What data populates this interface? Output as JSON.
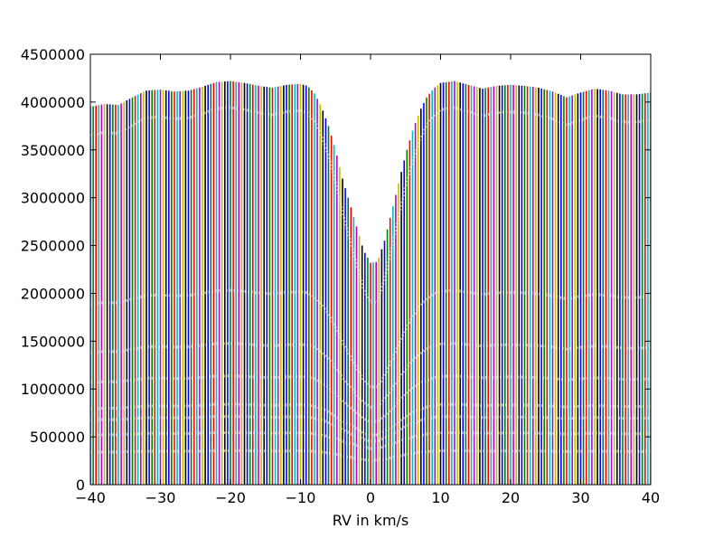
{
  "chart_data": {
    "type": "bar",
    "title": "",
    "xlabel": "RV in km/s",
    "ylabel": "",
    "xlim": [
      -40,
      40
    ],
    "ylim": [
      0,
      4500000
    ],
    "grid": false,
    "x_ticks": [
      -40,
      -30,
      -20,
      -10,
      0,
      10,
      20,
      30,
      40
    ],
    "x_tick_labels": [
      "−40",
      "−30",
      "−20",
      "−10",
      "0",
      "10",
      "20",
      "30",
      "40"
    ],
    "y_ticks": [
      0,
      500000,
      1000000,
      1500000,
      2000000,
      2500000,
      3000000,
      3500000,
      4000000,
      4500000
    ],
    "y_tick_labels": [
      "0",
      "500000",
      "1000000",
      "1500000",
      "2000000",
      "2500000",
      "3000000",
      "3500000",
      "4000000",
      "4500000"
    ],
    "bar_spacing_kms": 0.4,
    "bar_colors": [
      "#0000ff",
      "#008000",
      "#ff0000",
      "#00bfbf",
      "#bf00bf",
      "#bfbf00",
      "#000000"
    ],
    "envelope_profile": {
      "x": [
        -40,
        -38,
        -36,
        -34,
        -32,
        -30,
        -28,
        -26,
        -24,
        -22,
        -20,
        -18,
        -16,
        -14,
        -12,
        -10,
        -9,
        -8,
        -7,
        -6,
        -5,
        -4,
        -3,
        -2,
        -1,
        0,
        1,
        2,
        3,
        4,
        5,
        6,
        7,
        8,
        9,
        10,
        12,
        14,
        16,
        18,
        20,
        22,
        24,
        26,
        28,
        30,
        32,
        34,
        36,
        38,
        40
      ],
      "y": [
        3950000,
        3980000,
        3970000,
        4050000,
        4120000,
        4130000,
        4110000,
        4120000,
        4160000,
        4210000,
        4220000,
        4200000,
        4170000,
        4150000,
        4180000,
        4190000,
        4170000,
        4090000,
        3950000,
        3750000,
        3500000,
        3200000,
        2950000,
        2700000,
        2450000,
        2320000,
        2330000,
        2550000,
        2850000,
        3150000,
        3450000,
        3700000,
        3900000,
        4050000,
        4140000,
        4200000,
        4220000,
        4180000,
        4140000,
        4170000,
        4180000,
        4170000,
        4150000,
        4110000,
        4050000,
        4100000,
        4140000,
        4120000,
        4080000,
        4080000,
        4100000
      ]
    },
    "series": [
      {
        "values_scale": 0.93,
        "dip_depth": 0.52
      },
      {
        "values_scale": 0.48,
        "dip_depth": 0.5
      },
      {
        "values_scale": 0.35,
        "dip_depth": 0.45
      },
      {
        "values_scale": 0.27,
        "dip_depth": 0.42
      },
      {
        "values_scale": 0.2,
        "dip_depth": 0.38
      },
      {
        "values_scale": 0.17,
        "dip_depth": 0.36
      },
      {
        "values_scale": 0.13,
        "dip_depth": 0.3
      },
      {
        "values_scale": 0.085,
        "dip_depth": 0.28
      }
    ]
  }
}
